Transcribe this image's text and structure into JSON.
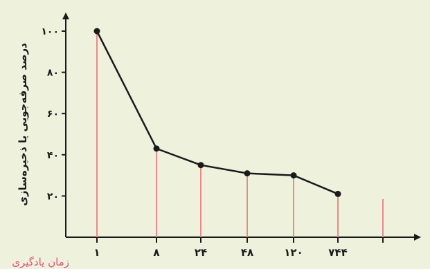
{
  "chart_data": {
    "type": "line",
    "ylabel": "درصد صرفه‌جویی یا ذخیره‌سازی",
    "xlabel": "زمان یادگیری",
    "categories": [
      "۱",
      "۸",
      "۲۴",
      "۴۸",
      "۱۲۰",
      "۷۴۴"
    ],
    "values": [
      100,
      43,
      35,
      31,
      30,
      21
    ],
    "yticks": [
      {
        "value": 20,
        "label": "۲۰"
      },
      {
        "value": 40,
        "label": "۴۰"
      },
      {
        "value": 60,
        "label": "۶۰"
      },
      {
        "value": 80,
        "label": "۸۰"
      },
      {
        "value": 100,
        "label": "۱۰۰"
      }
    ],
    "ylim": [
      0,
      110
    ],
    "extra_tick_after_last": true,
    "grid": false,
    "colors": {
      "background": "#eef2dd",
      "line": "#1a1a1a",
      "point": "#1a1a1a",
      "drop_line": "#e88a8a",
      "axis": "#1a1a1a",
      "xlabel": "#e0517a",
      "text": "#1a1a1a"
    }
  }
}
